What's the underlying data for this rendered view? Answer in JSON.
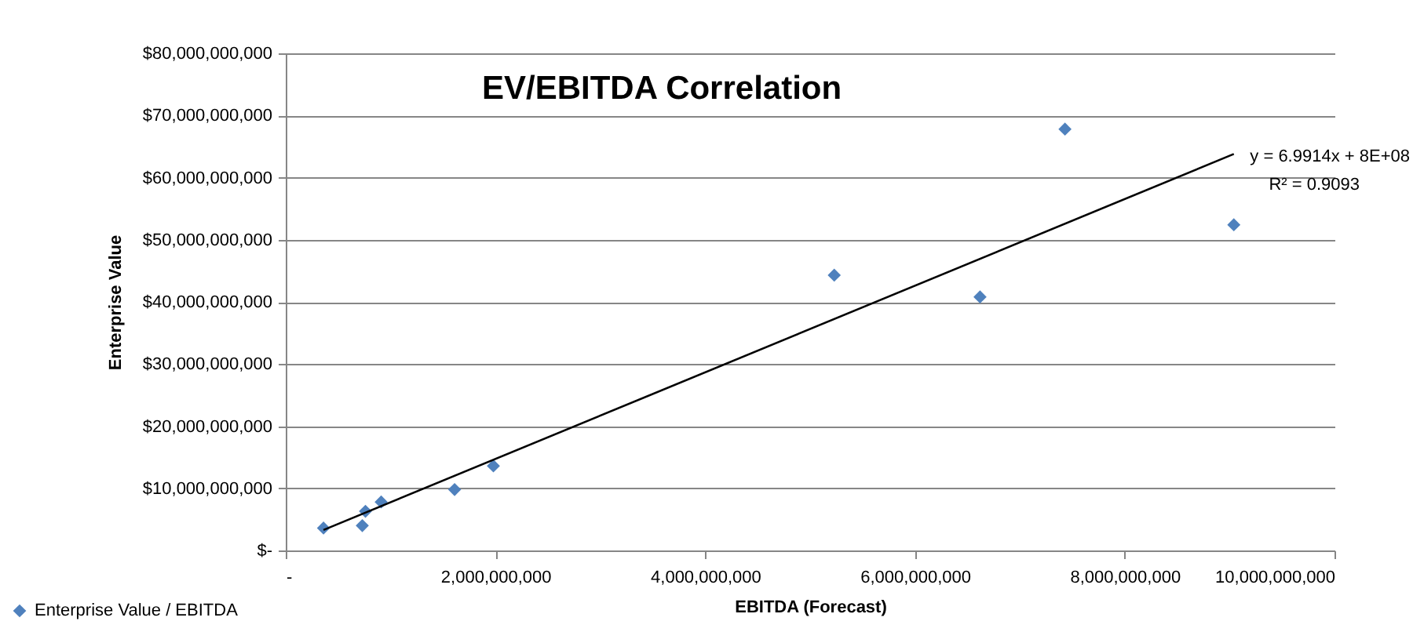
{
  "chart_data": {
    "type": "scatter",
    "title": "EV/EBITDA Correlation",
    "xlabel": "EBITDA (Forecast)",
    "ylabel": "Enterprise Value",
    "xlim": [
      0,
      10000000000
    ],
    "ylim": [
      0,
      80000000000
    ],
    "xticks": [
      {
        "value": 0,
        "label": "-"
      },
      {
        "value": 2000000000,
        "label": "2,000,000,000"
      },
      {
        "value": 4000000000,
        "label": "4,000,000,000"
      },
      {
        "value": 6000000000,
        "label": "6,000,000,000"
      },
      {
        "value": 8000000000,
        "label": "8,000,000,000"
      },
      {
        "value": 10000000000,
        "label": "10,000,000,000"
      }
    ],
    "yticks": [
      {
        "value": 0,
        "label": "$-"
      },
      {
        "value": 10000000000,
        "label": "$10,000,000,000"
      },
      {
        "value": 20000000000,
        "label": "$20,000,000,000"
      },
      {
        "value": 30000000000,
        "label": "$30,000,000,000"
      },
      {
        "value": 40000000000,
        "label": "$40,000,000,000"
      },
      {
        "value": 50000000000,
        "label": "$50,000,000,000"
      },
      {
        "value": 60000000000,
        "label": "$60,000,000,000"
      },
      {
        "value": 70000000000,
        "label": "$70,000,000,000"
      },
      {
        "value": 80000000000,
        "label": "$80,000,000,000"
      }
    ],
    "grid": "y",
    "legend": "bottom left",
    "marker": "diamond",
    "series": [
      {
        "name": "Enterprise Value / EBITDA",
        "type": "scatter",
        "color": "#4f81bd",
        "x": [
          360000000,
          730000000,
          760000000,
          910000000,
          1610000000,
          1980000000,
          5230000000,
          6620000000,
          7430000000,
          9040000000
        ],
        "values": [
          3600000000,
          4000000000,
          6300000000,
          7800000000,
          9800000000,
          13600000000,
          44300000000,
          40800000000,
          67800000000,
          52400000000
        ]
      },
      {
        "type": "line",
        "color": "#000000",
        "line_style": "solid",
        "marker": "none",
        "x": [
          360000000,
          9040000000
        ],
        "values": [
          3300000000,
          63800000000
        ]
      }
    ],
    "annotations": [
      "y = 6.9914x + 8E+08",
      "R² = 0.9093"
    ]
  }
}
